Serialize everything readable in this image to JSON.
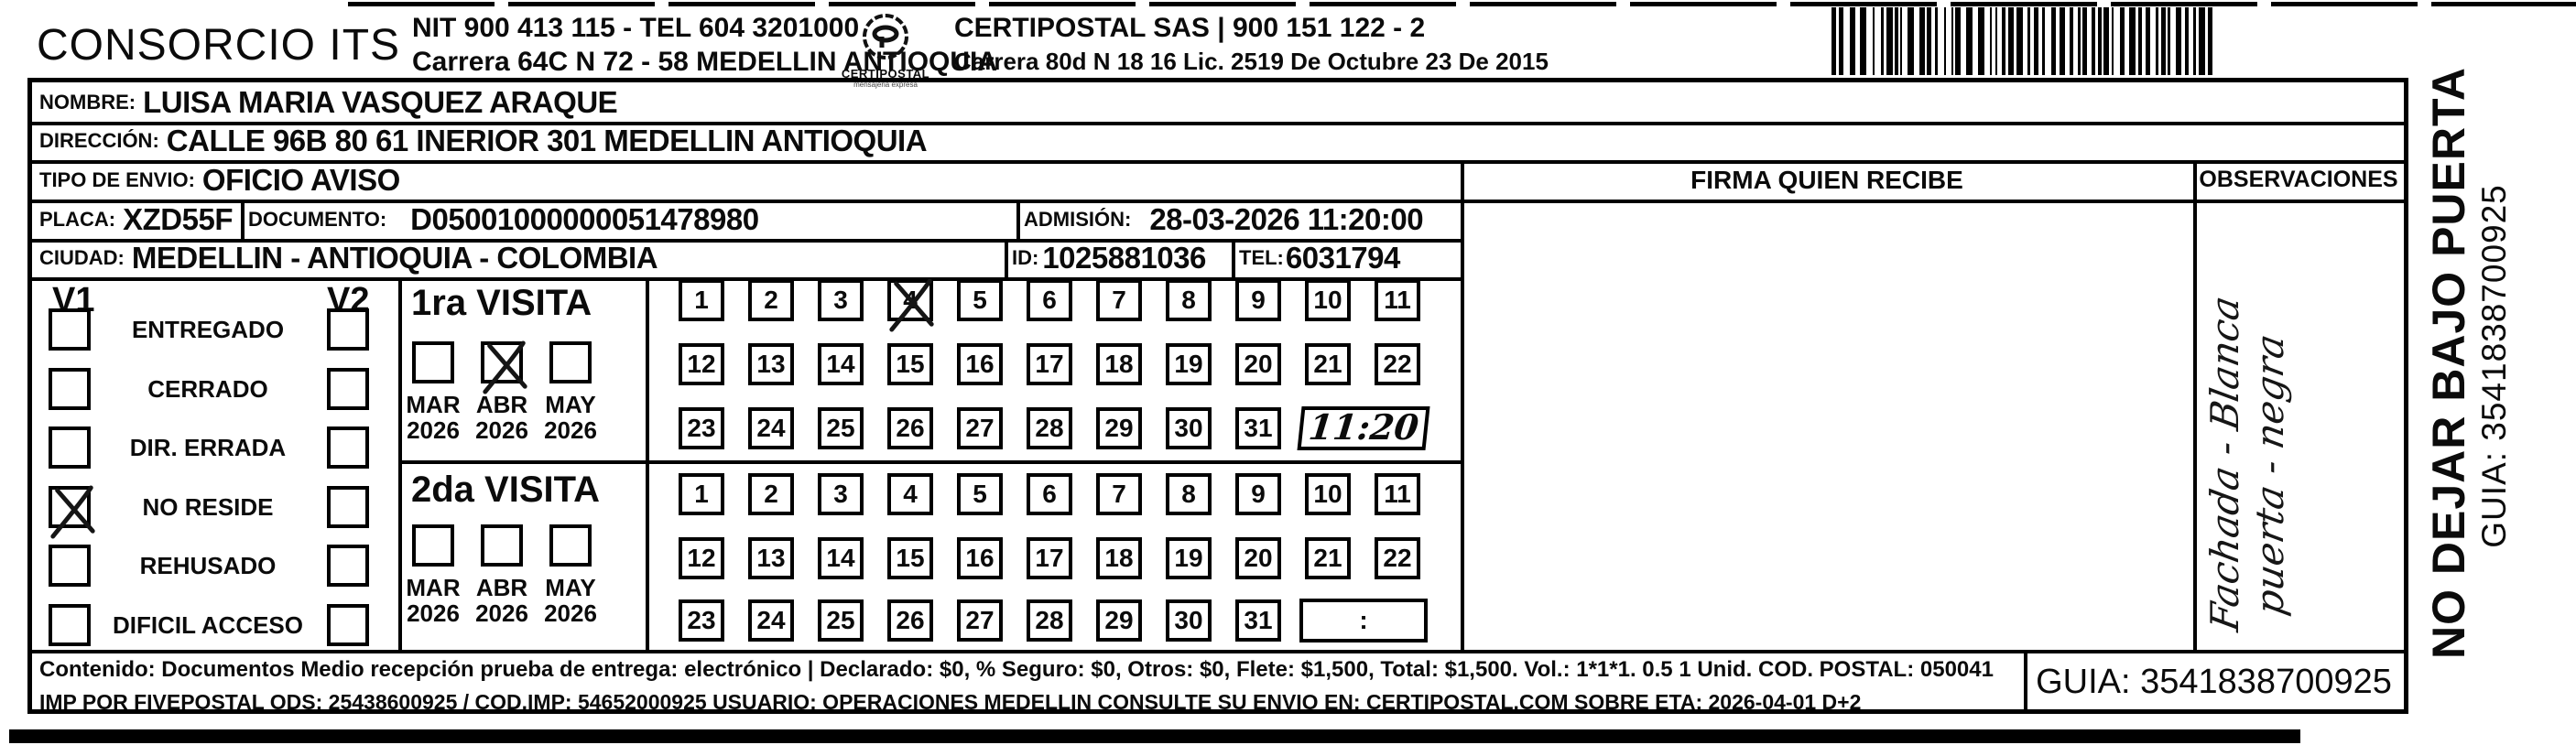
{
  "header": {
    "company": "CONSORCIO ITS",
    "nit_line1": "NIT 900 413 115 - TEL 604 3201000",
    "nit_line2": "Carrera 64C N 72 - 58 MEDELLIN ANTIOQUIA",
    "logo_text": "CERTIPOSTAL",
    "logo_tagline": "mensajeria expresa",
    "certipostal_line1": "CERTIPOSTAL SAS | 900 151 122 - 2",
    "certipostal_line2": "Carrera 80d N 18 16  Lic. 2519 De Octubre 23 De 2015"
  },
  "recipient": {
    "nombre_label": "NOMBRE:",
    "nombre": "LUISA MARIA VASQUEZ ARAQUE",
    "direccion_label": "DIRECCIÓN:",
    "direccion": "CALLE 96B 80 61 INERIOR 301 MEDELLIN ANTIOQUIA",
    "tipo_label": "TIPO DE ENVIO:",
    "tipo": "OFICIO AVISO",
    "placa_label": "PLACA:",
    "placa": "XZD55F",
    "documento_label": "DOCUMENTO:",
    "documento": "D05001000000051478980",
    "admision_label": "ADMISIÓN:",
    "admision": "28-03-2026 11:20:00",
    "ciudad_label": "CIUDAD:",
    "ciudad": "MEDELLIN - ANTIOQUIA - COLOMBIA",
    "id_label": "ID:",
    "id": "1025881036",
    "tel_label": "TEL:",
    "tel": "6031794"
  },
  "firma_header": "FIRMA QUIEN RECIBE",
  "observaciones_header": "OBSERVACIONES",
  "observaciones_note": {
    "line1": "Fachada -  Blanca",
    "line2": "puerta  - negra"
  },
  "status": {
    "col1": "V1",
    "col2": "V2",
    "items": [
      {
        "label": "ENTREGADO",
        "v1": false,
        "v2": false
      },
      {
        "label": "CERRADO",
        "v1": false,
        "v2": false
      },
      {
        "label": "DIR. ERRADA",
        "v1": false,
        "v2": false
      },
      {
        "label": "NO RESIDE",
        "v1": true,
        "v2": false
      },
      {
        "label": "REHUSADO",
        "v1": false,
        "v2": false
      },
      {
        "label": "DIFICIL ACCESO",
        "v1": false,
        "v2": false
      }
    ]
  },
  "visits": [
    {
      "title": "1ra VISITA",
      "months": [
        {
          "label": "MAR",
          "year": "2026",
          "checked": false
        },
        {
          "label": "ABR",
          "year": "2026",
          "checked": true
        },
        {
          "label": "MAY",
          "year": "2026",
          "checked": false
        }
      ],
      "days": [
        1,
        2,
        3,
        4,
        5,
        6,
        7,
        8,
        9,
        10,
        11,
        12,
        13,
        14,
        15,
        16,
        17,
        18,
        19,
        20,
        21,
        22,
        23,
        24,
        25,
        26,
        27,
        28,
        29,
        30,
        31
      ],
      "marked_day": 4,
      "time": "11:20",
      "time_handwritten": true
    },
    {
      "title": "2da VISITA",
      "months": [
        {
          "label": "MAR",
          "year": "2026",
          "checked": false
        },
        {
          "label": "ABR",
          "year": "2026",
          "checked": false
        },
        {
          "label": "MAY",
          "year": "2026",
          "checked": false
        }
      ],
      "days": [
        1,
        2,
        3,
        4,
        5,
        6,
        7,
        8,
        9,
        10,
        11,
        12,
        13,
        14,
        15,
        16,
        17,
        18,
        19,
        20,
        21,
        22,
        23,
        24,
        25,
        26,
        27,
        28,
        29,
        30,
        31
      ],
      "marked_day": null,
      "time": ":",
      "time_handwritten": false
    }
  ],
  "footer": {
    "line1": "Contenido: Documentos Medio recepción prueba de entrega: electrónico | Declarado: $0, % Seguro: $0, Otros: $0, Flete: $1,500, Total: $1,500. Vol.: 1*1*1. 0.5  1 Unid. COD. POSTAL: 050041",
    "line2": "IMP POR FIVEPOSTAL ODS: 25438600925 / COD.IMP: 54652000925 USUARIO: OPERACIONES MEDELLIN CONSULTE SU ENVIO EN: CERTIPOSTAL.COM SOBRE ETA: 2026-04-01 D+2",
    "guia": "GUIA: 3541838700925"
  },
  "side": {
    "line1": "NO DEJAR BAJO PUERTA",
    "line2": "GUIA: 3541838700925"
  }
}
